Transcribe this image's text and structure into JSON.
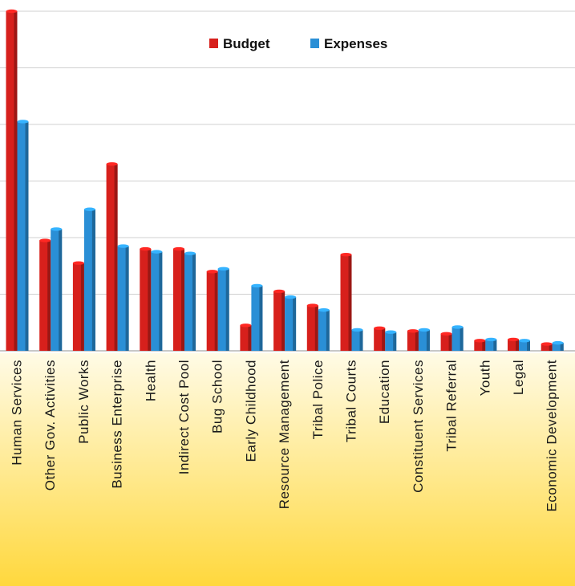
{
  "chart_data": {
    "type": "bar",
    "categories": [
      "Human Services",
      "Other Gov. Activities",
      "Public Works",
      "Business Enterprise",
      "Health",
      "Indirect Cost Pool",
      "Bug School",
      "Early Childhood",
      "Resource Management",
      "Tribal Police",
      "Tribal Courts",
      "Education",
      "Constituent Services",
      "Tribal Referral",
      "Youth",
      "Legal",
      "Economic Development"
    ],
    "series": [
      {
        "name": "Budget",
        "color": "#d7201c",
        "values": [
          6.0,
          1.95,
          1.55,
          3.3,
          1.8,
          1.8,
          1.4,
          0.45,
          1.05,
          0.8,
          1.7,
          0.4,
          0.35,
          0.3,
          0.18,
          0.2,
          0.12
        ]
      },
      {
        "name": "Expenses",
        "color": "#2a8fd6",
        "values": [
          4.05,
          2.15,
          2.5,
          1.85,
          1.75,
          1.72,
          1.45,
          1.15,
          0.95,
          0.72,
          0.37,
          0.33,
          0.37,
          0.42,
          0.2,
          0.18,
          0.14
        ]
      }
    ],
    "ylim": [
      0,
      6
    ],
    "grid": true,
    "legend_position": "top",
    "title": "",
    "xlabel": "",
    "ylabel": ""
  },
  "colors": {
    "band_top": "#fffbe6",
    "band_bottom": "#ffd83d",
    "grid": "#d0d0d0"
  }
}
